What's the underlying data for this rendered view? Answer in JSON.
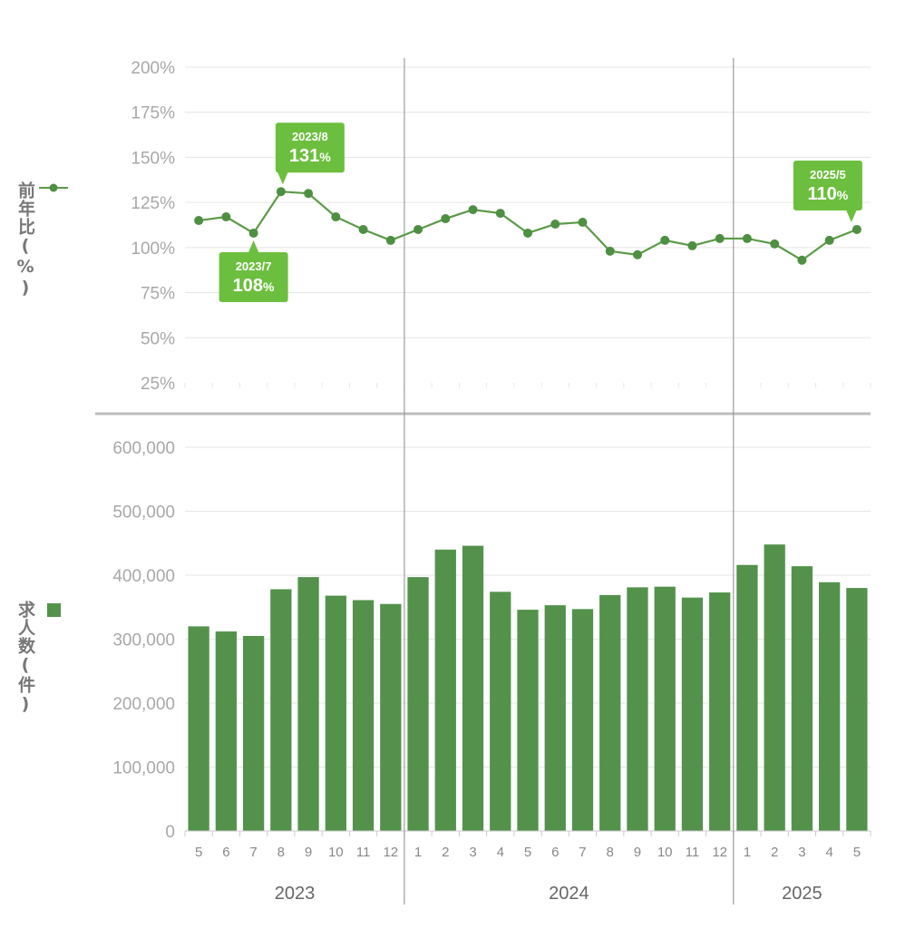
{
  "colors": {
    "bar": "#54924c",
    "line": "#5c9a48",
    "marker": "#4f8f43",
    "callout": "#6cbf3e",
    "grid": "#e6e6e6",
    "tick_text": "#a8a8a8",
    "year_text": "#666666",
    "divider": "#bdbdbd",
    "year_separator": "#8a8a8a"
  },
  "legend": {
    "line_label": "前年比(%)",
    "bar_label": "求人数(件)"
  },
  "chart_data": [
    {
      "type": "line",
      "ylabel": "前年比(%)",
      "ylim": [
        25,
        200
      ],
      "yticks": [
        "25%",
        "50%",
        "75%",
        "100%",
        "125%",
        "150%",
        "175%",
        "200%"
      ],
      "ytick_values": [
        25,
        50,
        75,
        100,
        125,
        150,
        175,
        200
      ],
      "categories": [
        "2023/5",
        "2023/6",
        "2023/7",
        "2023/8",
        "2023/9",
        "2023/10",
        "2023/11",
        "2023/12",
        "2024/1",
        "2024/2",
        "2024/3",
        "2024/4",
        "2024/5",
        "2024/6",
        "2024/7",
        "2024/8",
        "2024/9",
        "2024/10",
        "2024/11",
        "2024/12",
        "2025/1",
        "2025/2",
        "2025/3",
        "2025/4",
        "2025/5"
      ],
      "values": [
        115,
        117,
        108,
        131,
        130,
        117,
        110,
        104,
        110,
        116,
        121,
        119,
        108,
        113,
        114,
        98,
        96,
        104,
        101,
        105,
        105,
        102,
        93,
        104,
        110
      ],
      "grid": true,
      "annotations": [
        {
          "index": 2,
          "date": "2023/7",
          "value": "108",
          "unit": "%",
          "position": "below"
        },
        {
          "index": 3,
          "date": "2023/8",
          "value": "131",
          "unit": "%",
          "position": "above"
        },
        {
          "index": 24,
          "date": "2025/5",
          "value": "110",
          "unit": "%",
          "position": "above"
        }
      ]
    },
    {
      "type": "bar",
      "ylabel": "求人数(件)",
      "ylim": [
        0,
        600000
      ],
      "yticks": [
        "0",
        "100,000",
        "200,000",
        "300,000",
        "400,000",
        "500,000",
        "600,000"
      ],
      "ytick_values": [
        0,
        100000,
        200000,
        300000,
        400000,
        500000,
        600000
      ],
      "categories": [
        "5",
        "6",
        "7",
        "8",
        "9",
        "10",
        "11",
        "12",
        "1",
        "2",
        "3",
        "4",
        "5",
        "6",
        "7",
        "8",
        "9",
        "10",
        "11",
        "12",
        "1",
        "2",
        "3",
        "4",
        "5"
      ],
      "values": [
        320000,
        312000,
        305000,
        378000,
        397000,
        368000,
        361000,
        355000,
        397000,
        440000,
        446000,
        374000,
        346000,
        353000,
        347000,
        369000,
        381000,
        382000,
        365000,
        373000,
        416000,
        448000,
        414000,
        389000,
        380000
      ],
      "grid": true
    }
  ],
  "years": [
    {
      "label": "2023",
      "start": 0,
      "end": 7
    },
    {
      "label": "2024",
      "start": 8,
      "end": 19
    },
    {
      "label": "2025",
      "start": 20,
      "end": 24
    }
  ]
}
